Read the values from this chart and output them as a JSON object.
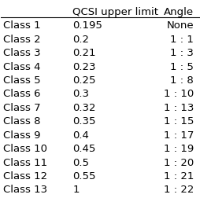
{
  "col_headers": [
    "QCSI upper limit",
    "Angle"
  ],
  "rows": [
    [
      "Class 1",
      "0.195",
      "None"
    ],
    [
      "Class 2",
      "0.2",
      "1 : 1"
    ],
    [
      "Class 3",
      "0.21",
      "1 : 3"
    ],
    [
      "Class 4",
      "0.23",
      "1 : 5"
    ],
    [
      "Class 5",
      "0.25",
      "1 : 8"
    ],
    [
      "Class 6",
      "0.3",
      "1 : 10"
    ],
    [
      "Class 7",
      "0.32",
      "1 : 13"
    ],
    [
      "Class 8",
      "0.35",
      "1 : 15"
    ],
    [
      "Class 9",
      "0.4",
      "1 : 17"
    ],
    [
      "Class 10",
      "0.45",
      "1 : 19"
    ],
    [
      "Class 11",
      "0.5",
      "1 : 20"
    ],
    [
      "Class 12",
      "0.55",
      "1 : 21"
    ],
    [
      "Class 13",
      "1",
      "1 : 22"
    ]
  ],
  "background_color": "#ffffff",
  "header_line_color": "#000000",
  "text_color": "#000000",
  "font_size": 9.5,
  "header_font_size": 9.5
}
